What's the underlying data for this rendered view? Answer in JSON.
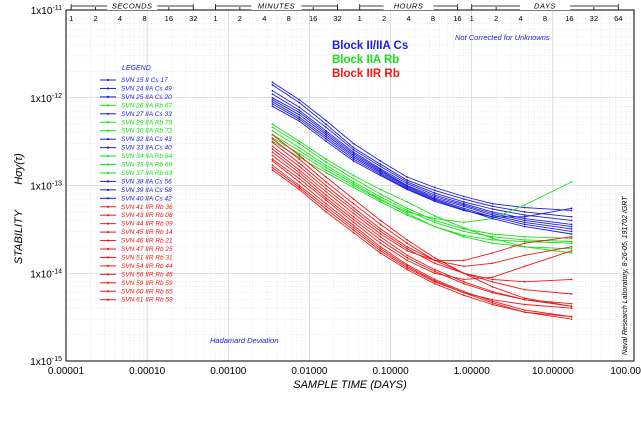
{
  "chart_data": {
    "type": "line",
    "xlabel": "SAMPLE TIME (DAYS)",
    "ylabel": "STABILITY",
    "ylabel_symbol": "Hσy(τ)",
    "x_scale": "log",
    "y_scale": "log",
    "xlim": [
      1e-05,
      100
    ],
    "ylim": [
      1e-15,
      1e-11
    ],
    "x_tick_labels": [
      "0.00001",
      "0.00010",
      "0.00100",
      "0.01000",
      "0.10000",
      "1.00000",
      "10.00000",
      "100.00000"
    ],
    "y_tick_labels": [
      {
        "base": "1x10",
        "exp": "-15"
      },
      {
        "base": "1x10",
        "exp": "-14"
      },
      {
        "base": "1x10",
        "exp": "-13"
      },
      {
        "base": "1x10",
        "exp": "-12"
      },
      {
        "base": "1x10",
        "exp": "-11"
      }
    ],
    "grid": true,
    "legend_title": "LEGEND",
    "legend_position": "left",
    "top_axis": {
      "bands": [
        {
          "title": "SECONDS",
          "labels": [
            "1",
            "2",
            "4",
            "8",
            "16",
            "32"
          ]
        },
        {
          "title": "MINUTES",
          "labels": [
            "1",
            "2",
            "4",
            "8",
            "16",
            "32"
          ]
        },
        {
          "title": "HOURS",
          "labels": [
            "1",
            "2",
            "4",
            "8",
            "16"
          ]
        },
        {
          "title": "DAYS",
          "labels": [
            "1",
            "2",
            "4",
            "8",
            "16",
            "32",
            "64"
          ]
        }
      ]
    },
    "annotations": {
      "not_corrected": "Not Corrected for Unknowns",
      "hadamard": "Hadamard Deviation",
      "credit": "Naval Research Laboratory, 8-26-05, 191702   IGRT"
    },
    "groups": [
      {
        "name": "Block II/IIA Cs",
        "color": "#1c1cdc"
      },
      {
        "name": "Block IIA Rb",
        "color": "#18e018"
      },
      {
        "name": "Block IIR Rb",
        "color": "#ee1a1a"
      }
    ],
    "series": [
      {
        "name": "SVN 15  II  Cs  17",
        "group": 0,
        "values": [
          1.5e-12,
          9.5e-13,
          5.5e-13,
          3e-13,
          1.9e-13,
          1.25e-13,
          9.5e-14,
          7.5e-14,
          6.2e-14,
          5.6e-14,
          5.2e-14
        ]
      },
      {
        "name": "SVN 24  IIA  Cs  49",
        "group": 0,
        "values": [
          1.4e-12,
          8.8e-13,
          5e-13,
          2.7e-13,
          1.75e-13,
          1.15e-13,
          8.8e-14,
          7e-14,
          5.8e-14,
          5e-14,
          4.4e-14
        ]
      },
      {
        "name": "SVN 25  IIA  Cs  20",
        "group": 0,
        "values": [
          1.2e-12,
          7.8e-13,
          4.6e-13,
          2.55e-13,
          1.65e-13,
          1.1e-13,
          8.2e-14,
          6.5e-14,
          5.4e-14,
          4.6e-14,
          4e-14
        ]
      },
      {
        "name": "SVN 26  IIA  Rb  67",
        "group": 1,
        "values": [
          5e-13,
          3.2e-13,
          2e-13,
          1.3e-13,
          9e-14,
          6.5e-14,
          4.5e-14,
          3.3e-14,
          2.5e-14,
          2e-14,
          1.7e-14
        ]
      },
      {
        "name": "SVN 27  IIA  Cs  33",
        "group": 0,
        "values": [
          1.1e-12,
          7.2e-13,
          4.2e-13,
          2.4e-13,
          1.55e-13,
          1.05e-13,
          7.8e-14,
          6.2e-14,
          5e-14,
          4.2e-14,
          3.6e-14
        ]
      },
      {
        "name": "SVN 29  IIA  Rb  79",
        "group": 1,
        "values": [
          4.6e-13,
          3e-13,
          1.85e-13,
          1.2e-13,
          8e-14,
          5.5e-14,
          4e-14,
          3.2e-14,
          2.8e-14,
          2.6e-14,
          2.5e-14
        ]
      },
      {
        "name": "SVN 30  IIA  Rb  72",
        "group": 1,
        "values": [
          4.2e-13,
          2.7e-13,
          1.7e-13,
          1.1e-13,
          7.4e-14,
          5.2e-14,
          3.8e-14,
          3e-14,
          2.6e-14,
          2.4e-14,
          2.3e-14
        ]
      },
      {
        "name": "SVN 32  IIA  Cs  43",
        "group": 0,
        "values": [
          1e-12,
          6.8e-13,
          4e-13,
          2.3e-13,
          1.5e-13,
          1e-13,
          7.5e-14,
          6e-14,
          4.8e-14,
          4e-14,
          3.4e-14
        ]
      },
      {
        "name": "SVN 33  IIA  Cs  40",
        "group": 0,
        "values": [
          9.5e-13,
          6.4e-13,
          3.8e-13,
          2.2e-13,
          1.45e-13,
          9.8e-14,
          7.2e-14,
          5.8e-14,
          4.6e-14,
          3.8e-14,
          3.2e-14
        ]
      },
      {
        "name": "SVN 34  IIA  Rb  84",
        "group": 1,
        "values": [
          3.8e-13,
          2.5e-13,
          1.6e-13,
          1.05e-13,
          7e-14,
          4.8e-14,
          3.4e-14,
          2.6e-14,
          2.2e-14,
          2e-14,
          1.9e-14
        ]
      },
      {
        "name": "SVN 35  IIA  Rb  69",
        "group": 1,
        "values": [
          3.5e-13,
          2.3e-13,
          1.5e-13,
          1e-13,
          6.8e-14,
          5e-14,
          4.2e-14,
          3.8e-14,
          4.2e-14,
          6e-14,
          1.1e-13
        ]
      },
      {
        "name": "SVN 37  IIA  Rb  63",
        "group": 1,
        "values": [
          3.2e-13,
          2.1e-13,
          1.4e-13,
          9.5e-14,
          6.5e-14,
          4.6e-14,
          3.4e-14,
          2.7e-14,
          2.4e-14,
          2.3e-14,
          2.2e-14
        ]
      },
      {
        "name": "SVN 38  IIA  Cs  56",
        "group": 0,
        "values": [
          9e-13,
          6e-13,
          3.6e-13,
          2.1e-13,
          1.4e-13,
          9.5e-14,
          7e-14,
          5.5e-14,
          4.4e-14,
          3.6e-14,
          3e-14
        ]
      },
      {
        "name": "SVN 39  IIA  Cs  58",
        "group": 0,
        "values": [
          8.5e-13,
          5.7e-13,
          3.4e-13,
          2e-13,
          1.35e-13,
          9.2e-14,
          6.8e-14,
          5.3e-14,
          4.2e-14,
          3.4e-14,
          2.8e-14
        ]
      },
      {
        "name": "SVN 40  IIA  Cs  42",
        "group": 0,
        "values": [
          8e-13,
          5.4e-13,
          3.2e-13,
          1.9e-13,
          1.3e-13,
          9e-14,
          6.6e-14,
          5.2e-14,
          4.4e-14,
          4.4e-14,
          5.5e-14
        ]
      },
      {
        "name": "SVN 41  IIR  Rb  36",
        "group": 2,
        "values": [
          3.8e-13,
          2.2e-13,
          1.25e-13,
          7e-14,
          4e-14,
          2.4e-14,
          1.5e-14,
          1e-14,
          7e-15,
          5.2e-15,
          4.2e-15
        ]
      },
      {
        "name": "SVN 43  IIR  Rb  08",
        "group": 2,
        "values": [
          3.4e-13,
          2e-13,
          1.1e-13,
          6.2e-14,
          3.6e-14,
          2.2e-14,
          1.4e-14,
          1e-14,
          8.5e-15,
          8e-15,
          8.5e-15
        ]
      },
      {
        "name": "SVN 44  IIR  Rb  09",
        "group": 2,
        "values": [
          3.1e-13,
          1.8e-13,
          1e-13,
          5.6e-14,
          3.2e-14,
          2e-14,
          1.4e-14,
          1.2e-14,
          1.3e-14,
          1.6e-14,
          2e-14
        ]
      },
      {
        "name": "SVN 45  IIR  Rb  14",
        "group": 2,
        "values": [
          2.8e-13,
          1.65e-13,
          9.2e-14,
          5.2e-14,
          3e-14,
          1.9e-14,
          1.3e-14,
          1e-14,
          8e-15,
          6.5e-15,
          5.8e-15
        ]
      },
      {
        "name": "SVN 46  IIR  Rb  21",
        "group": 2,
        "values": [
          2.6e-13,
          1.5e-13,
          8.5e-14,
          4.8e-14,
          2.8e-14,
          1.8e-14,
          1.4e-14,
          1.4e-14,
          1.7e-14,
          2.2e-14,
          2.6e-14
        ]
      },
      {
        "name": "SVN 47  IIR  Rb  25",
        "group": 2,
        "values": [
          2.4e-13,
          1.4e-13,
          7.8e-14,
          4.4e-14,
          2.6e-14,
          1.6e-14,
          1.1e-14,
          8e-15,
          6.2e-15,
          5e-15,
          4.2e-15
        ]
      },
      {
        "name": "SVN 51  IIR  Rb  31",
        "group": 2,
        "values": [
          2.2e-13,
          1.3e-13,
          7.2e-14,
          4.1e-14,
          2.4e-14,
          1.5e-14,
          1.05e-14,
          7.6e-15,
          6e-15,
          5e-15,
          4.5e-15
        ]
      },
      {
        "name": "SVN 54  IIR  Rb  44",
        "group": 2,
        "values": [
          2e-13,
          1.2e-13,
          6.8e-14,
          3.8e-14,
          2.2e-14,
          1.4e-14,
          1e-14,
          8.5e-15,
          9e-15,
          1.2e-14,
          1.8e-14
        ]
      },
      {
        "name": "SVN 56  IIR  Rb  46",
        "group": 2,
        "values": [
          1.9e-13,
          1.1e-13,
          6.2e-14,
          3.5e-14,
          2e-14,
          1.25e-14,
          8.5e-15,
          6.2e-15,
          4.8e-15,
          3.8e-15,
          3.2e-15
        ]
      },
      {
        "name": "SVN 59  IIR  Rb  59",
        "group": 2,
        "values": [
          1.7e-13,
          1e-13,
          5.8e-14,
          3.3e-14,
          1.9e-14,
          1.2e-14,
          8.2e-15,
          6e-15,
          4.6e-15,
          3.6e-15,
          3e-15
        ]
      },
      {
        "name": "SVN 60  IIR  Rb  65",
        "group": 2,
        "values": [
          1.6e-13,
          9.5e-14,
          5.4e-14,
          3.1e-14,
          1.8e-14,
          1.15e-14,
          8e-15,
          6e-15,
          5e-15,
          4.4e-15,
          4e-15
        ]
      },
      {
        "name": "SVN 61  IIR  Rb  59",
        "group": 2,
        "values": [
          1.5e-13,
          9e-14,
          5e-14,
          2.9e-14,
          1.7e-14,
          1.1e-14,
          7.6e-15,
          5.6e-15,
          4.4e-15,
          3.6e-15,
          3.2e-15
        ]
      }
    ],
    "x": [
      0.0035,
      0.0075,
      0.016,
      0.035,
      0.075,
      0.16,
      0.35,
      0.8,
      1.8,
      4.5,
      17
    ]
  }
}
